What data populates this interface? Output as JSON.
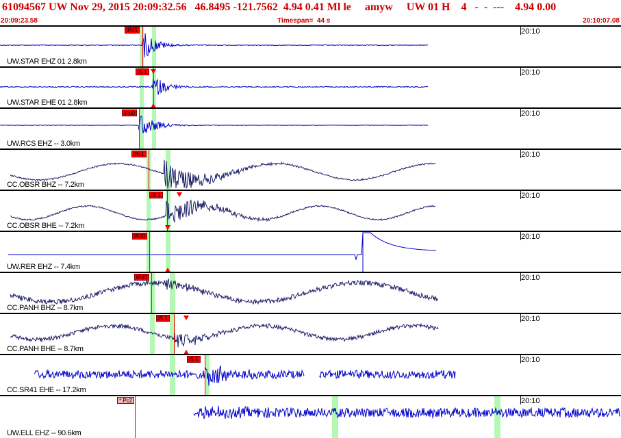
{
  "header": {
    "title": "61094567 UW Nov 29, 2015 20:09:32.56   46.8495 -121.7562  4.94 0.41 Ml le     amyw     UW 01 H    4   -  -  ---    4.94 0.00",
    "start_time": "20:09:23.58",
    "timespan": "Timespan=  44 s",
    "end_time": "20:10:07.08"
  },
  "time_marker": "20:10",
  "colors": {
    "header_text": "#cc0000",
    "trace_blue": "#0000cc",
    "trace_navy": "#1a1a66",
    "pick_red": "#ff0000",
    "window_green": "#9cf59c"
  },
  "channels": [
    {
      "label": "UW.STAR EHZ 01 2.8km",
      "pick": "iPd1",
      "trace_color": "#0000cc"
    },
    {
      "label": "UW.STAR EHE 01 2.8km",
      "pick": "iS 1",
      "trace_color": "#0000cc"
    },
    {
      "label": "UW.RCS EHZ -- 3.0km",
      "pick": "iPd0",
      "trace_color": "#0000cc"
    },
    {
      "label": "CC.OBSR BHZ -- 7.2km",
      "pick": "iPc1",
      "trace_color": "#1a1a66"
    },
    {
      "label": "CC.OBSR BHE -- 7.2km",
      "pick": "iS 1",
      "trace_color": "#1a1a66"
    },
    {
      "label": "UW.RER EHZ -- 7.4km",
      "pick": "iPd0",
      "trace_color": "#0000cc"
    },
    {
      "label": "CC.PANH BHZ -- 8.7km",
      "pick": "iPd0",
      "trace_color": "#1a1a66"
    },
    {
      "label": "CC.PANH BHE -- 8.7km",
      "pick": "iS 1",
      "trace_color": "#1a1a66"
    },
    {
      "label": "CC.SR41 EHE -- 17.2km",
      "pick": "iS 1",
      "trace_color": "#0000cc"
    },
    {
      "label": "UW.ELL EHZ -- 90.6km",
      "pick": "* Pc2",
      "trace_color": "#0000cc"
    }
  ]
}
